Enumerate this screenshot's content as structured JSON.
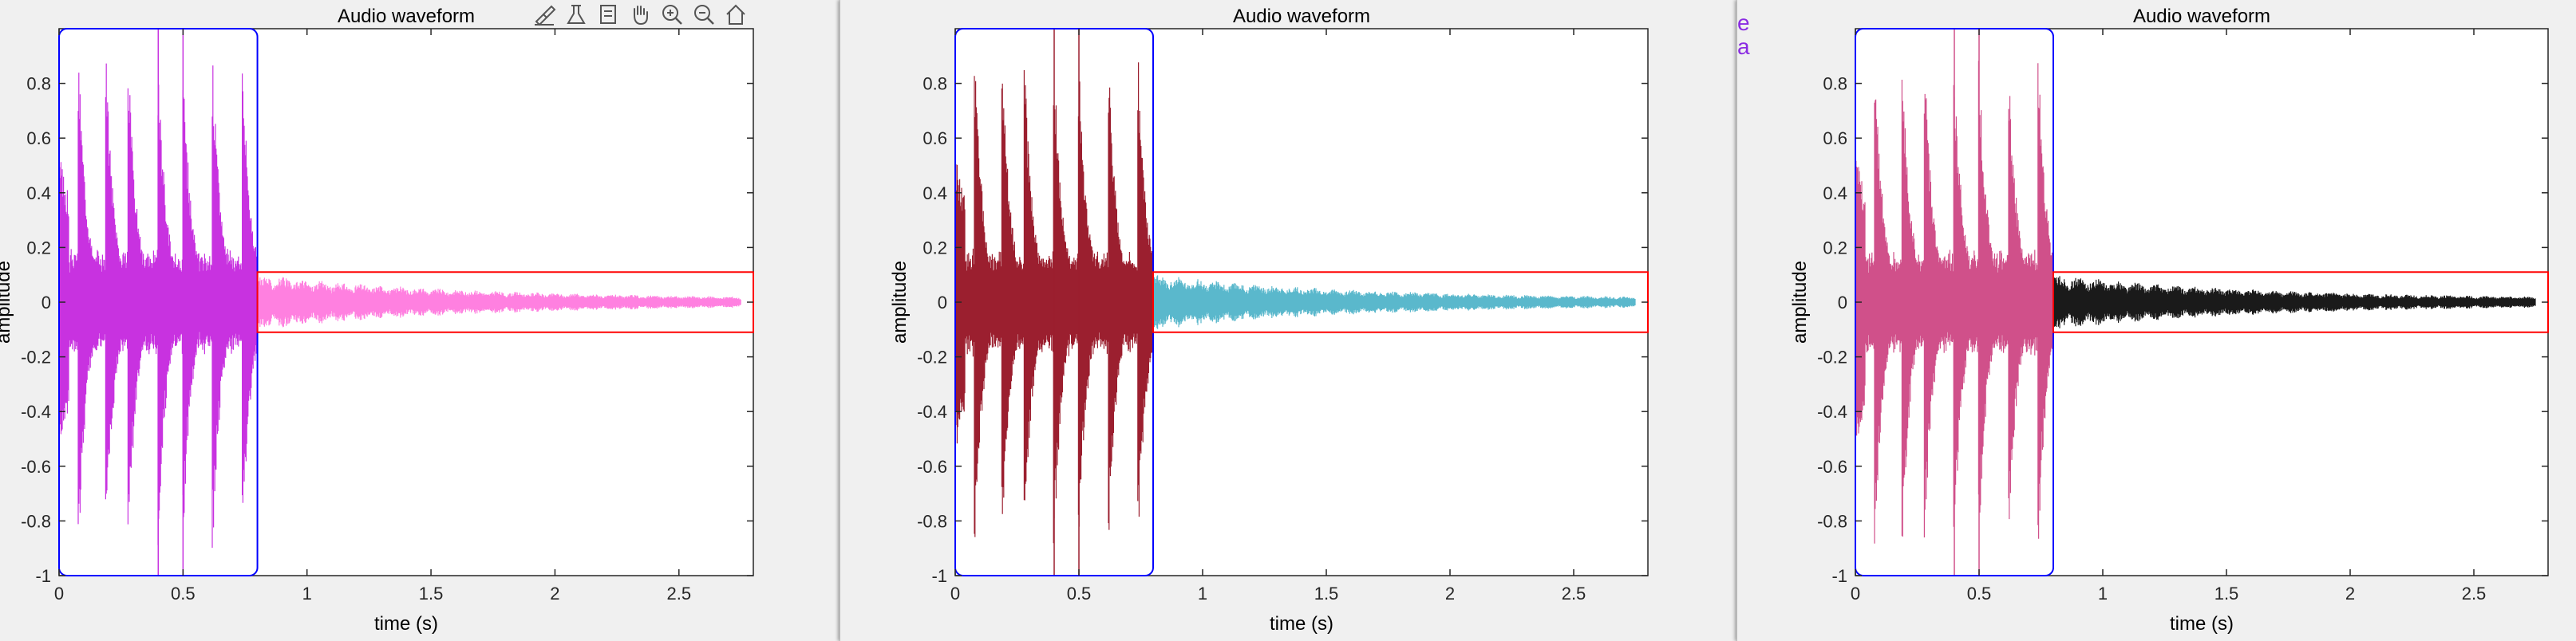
{
  "toolbar": {
    "icons": [
      "brush-icon",
      "data-tips-icon",
      "restore-view-icon",
      "pan-hand-icon",
      "zoom-in-icon",
      "zoom-out-icon",
      "home-icon"
    ]
  },
  "panel3_left_edge_text": [
    "e",
    "a"
  ],
  "chart_data": [
    {
      "type": "line",
      "title": "Audio waveform",
      "xlabel": "time (s)",
      "ylabel": "amplitude",
      "xlim": [
        0,
        2.8
      ],
      "ylim": [
        -1,
        1
      ],
      "xticks": [
        0,
        0.5,
        1,
        1.5,
        2,
        2.5
      ],
      "xtick_labels": [
        "0",
        "0.5",
        "1",
        "1.5",
        "2",
        "2.5"
      ],
      "yticks": [
        -1,
        -0.8,
        -0.6,
        -0.4,
        -0.2,
        0,
        0.2,
        0.4,
        0.6,
        0.8
      ],
      "ytick_labels": [
        "-1",
        "-0.8",
        "-0.6",
        "-0.4",
        "-0.2",
        "0",
        "0.2",
        "0.4",
        "0.6",
        "0.8"
      ],
      "series": [
        {
          "segment": "0-0.8s",
          "color": "#c832e0",
          "envelope_peaks_t": [
            0.08,
            0.19,
            0.28,
            0.4,
            0.5,
            0.62,
            0.74
          ]
        },
        {
          "segment": "0.8-2.75s",
          "color": "#ff80e0"
        }
      ],
      "highlight_boxes": [
        {
          "color": "#0000ff",
          "x": [
            0,
            0.8
          ],
          "y": [
            -1,
            1
          ],
          "rounded": true
        },
        {
          "color": "#ff0000",
          "x": [
            0.8,
            2.8
          ],
          "y": [
            -0.11,
            0.11
          ]
        }
      ],
      "vertical_lines_t": [
        0.4,
        0.5
      ]
    },
    {
      "type": "line",
      "title": "Audio waveform",
      "xlabel": "time (s)",
      "ylabel": "amplitude",
      "xlim": [
        0,
        2.8
      ],
      "ylim": [
        -1,
        1
      ],
      "xticks": [
        0,
        0.5,
        1,
        1.5,
        2,
        2.5
      ],
      "xtick_labels": [
        "0",
        "0.5",
        "1",
        "1.5",
        "2",
        "2.5"
      ],
      "yticks": [
        -1,
        -0.8,
        -0.6,
        -0.4,
        -0.2,
        0,
        0.2,
        0.4,
        0.6,
        0.8
      ],
      "ytick_labels": [
        "-1",
        "-0.8",
        "-0.6",
        "-0.4",
        "-0.2",
        "0",
        "0.2",
        "0.4",
        "0.6",
        "0.8"
      ],
      "series": [
        {
          "segment": "0-0.8s",
          "color": "#9b1f2f",
          "envelope_peaks_t": [
            0.08,
            0.19,
            0.28,
            0.4,
            0.5,
            0.62,
            0.74
          ]
        },
        {
          "segment": "0.8-2.75s",
          "color": "#5ab8cc"
        }
      ],
      "highlight_boxes": [
        {
          "color": "#0000ff",
          "x": [
            0,
            0.8
          ],
          "y": [
            -1,
            1
          ],
          "rounded": true
        },
        {
          "color": "#ff0000",
          "x": [
            0.8,
            2.8
          ],
          "y": [
            -0.11,
            0.11
          ]
        }
      ],
      "vertical_lines_t": [
        0.4,
        0.5
      ]
    },
    {
      "type": "line",
      "title": "Audio waveform",
      "xlabel": "time (s)",
      "ylabel": "amplitude",
      "xlim": [
        0,
        2.8
      ],
      "ylim": [
        -1,
        1
      ],
      "xticks": [
        0,
        0.5,
        1,
        1.5,
        2,
        2.5
      ],
      "xtick_labels": [
        "0",
        "0.5",
        "1",
        "1.5",
        "2",
        "2.5"
      ],
      "yticks": [
        -1,
        -0.8,
        -0.6,
        -0.4,
        -0.2,
        0,
        0.2,
        0.4,
        0.6,
        0.8
      ],
      "ytick_labels": [
        "-1",
        "-0.8",
        "-0.6",
        "-0.4",
        "-0.2",
        "0",
        "0.2",
        "0.4",
        "0.6",
        "0.8"
      ],
      "series": [
        {
          "segment": "0-0.8s",
          "color": "#d0508a",
          "envelope_peaks_t": [
            0.08,
            0.19,
            0.28,
            0.4,
            0.5,
            0.62,
            0.74
          ]
        },
        {
          "segment": "0.8-2.75s",
          "color": "#1a1a1a"
        }
      ],
      "highlight_boxes": [
        {
          "color": "#0000ff",
          "x": [
            0,
            0.8
          ],
          "y": [
            -1,
            1
          ],
          "rounded": true
        },
        {
          "color": "#ff0000",
          "x": [
            0.8,
            2.8
          ],
          "y": [
            -0.11,
            0.11
          ]
        }
      ],
      "vertical_lines_t": [
        0.4,
        0.5
      ]
    }
  ]
}
